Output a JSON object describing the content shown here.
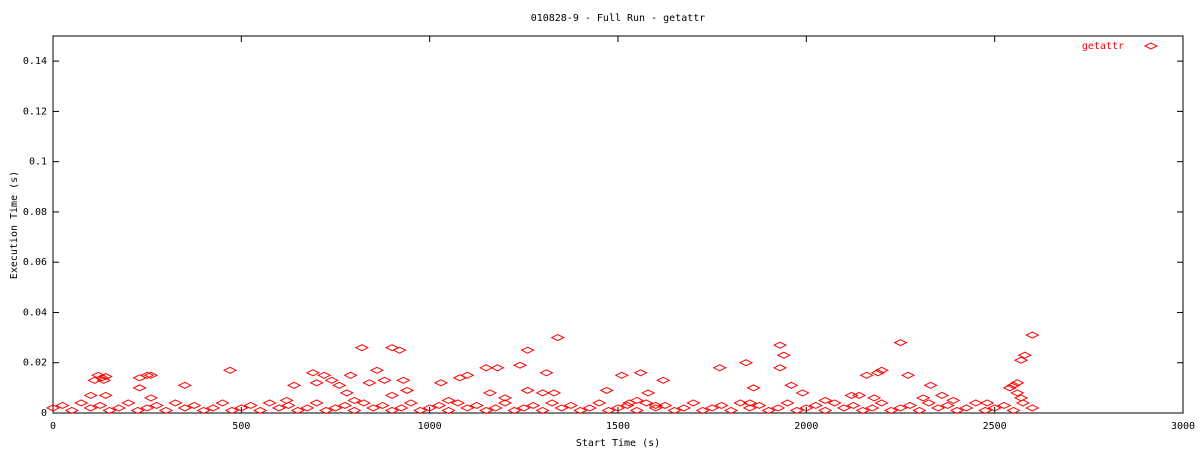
{
  "chart_data": {
    "type": "scatter",
    "title": "010828-9 - Full Run - getattr",
    "x_label": "Start Time (s)",
    "y_label": "Execution Time (s)",
    "xlim": [
      0,
      3000
    ],
    "xticks": [
      0,
      500,
      1000,
      1500,
      2000,
      2500,
      3000
    ],
    "ylim": [
      0,
      0.15
    ],
    "yticks": [
      0,
      0.02,
      0.04,
      0.06,
      0.08,
      0.1,
      0.12,
      0.14
    ],
    "legend": "top-right",
    "series": [
      {
        "name": "getattr",
        "color": "#ff0000",
        "x": [
          120,
          130,
          140,
          110,
          135,
          100,
          140,
          230,
          250,
          260,
          230,
          260,
          350,
          470,
          620,
          640,
          690,
          700,
          720,
          740,
          760,
          780,
          790,
          800,
          820,
          840,
          860,
          880,
          900,
          920,
          930,
          940,
          900,
          1030,
          1080,
          1100,
          1050,
          1150,
          1180,
          1160,
          1200,
          1240,
          1260,
          1260,
          1300,
          1310,
          1340,
          1330,
          1470,
          1510,
          1530,
          1560,
          1550,
          1580,
          1620,
          1600,
          1770,
          1840,
          1850,
          1860,
          1930,
          1940,
          1930,
          1960,
          1990,
          2050,
          2120,
          2140,
          2160,
          2200,
          2190,
          2180,
          2250,
          2270,
          2310,
          2330,
          2360,
          2390,
          2480,
          2540,
          2550,
          2560,
          2570,
          2580,
          2600,
          2560,
          2570,
          0,
          25,
          50,
          75,
          100,
          125,
          150,
          175,
          200,
          225,
          250,
          275,
          300,
          325,
          350,
          375,
          400,
          425,
          450,
          475,
          500,
          525,
          550,
          575,
          600,
          625,
          650,
          675,
          700,
          725,
          750,
          775,
          800,
          825,
          850,
          875,
          900,
          925,
          950,
          975,
          1000,
          1025,
          1050,
          1075,
          1100,
          1125,
          1150,
          1175,
          1200,
          1225,
          1250,
          1275,
          1300,
          1325,
          1350,
          1375,
          1400,
          1425,
          1450,
          1475,
          1500,
          1525,
          1550,
          1575,
          1600,
          1625,
          1650,
          1675,
          1700,
          1725,
          1750,
          1775,
          1800,
          1825,
          1850,
          1875,
          1900,
          1925,
          1950,
          1975,
          2000,
          2025,
          2050,
          2075,
          2100,
          2125,
          2150,
          2175,
          2200,
          2225,
          2250,
          2275,
          2300,
          2325,
          2350,
          2375,
          2400,
          2425,
          2450,
          2475,
          2500,
          2525,
          2550,
          2575,
          2600
        ],
        "values": [
          0.015,
          0.014,
          0.0145,
          0.013,
          0.013,
          0.007,
          0.007,
          0.014,
          0.015,
          0.015,
          0.01,
          0.006,
          0.011,
          0.017,
          0.005,
          0.011,
          0.016,
          0.012,
          0.015,
          0.013,
          0.011,
          0.008,
          0.015,
          0.005,
          0.026,
          0.012,
          0.017,
          0.013,
          0.026,
          0.025,
          0.013,
          0.009,
          0.007,
          0.012,
          0.014,
          0.015,
          0.005,
          0.018,
          0.018,
          0.008,
          0.006,
          0.019,
          0.025,
          0.009,
          0.008,
          0.016,
          0.03,
          0.008,
          0.009,
          0.015,
          0.004,
          0.016,
          0.005,
          0.008,
          0.013,
          0.003,
          0.018,
          0.02,
          0.004,
          0.01,
          0.027,
          0.023,
          0.018,
          0.011,
          0.008,
          0.005,
          0.007,
          0.007,
          0.015,
          0.017,
          0.016,
          0.006,
          0.028,
          0.015,
          0.006,
          0.011,
          0.007,
          0.005,
          0.004,
          0.01,
          0.011,
          0.012,
          0.021,
          0.023,
          0.031,
          0.008,
          0.006,
          0.002,
          0.003,
          0.001,
          0.004,
          0.002,
          0.003,
          0.001,
          0.002,
          0.004,
          0.001,
          0.002,
          0.003,
          0.001,
          0.004,
          0.002,
          0.003,
          0.001,
          0.002,
          0.004,
          0.001,
          0.002,
          0.003,
          0.001,
          0.004,
          0.002,
          0.003,
          0.001,
          0.002,
          0.004,
          0.001,
          0.002,
          0.003,
          0.001,
          0.004,
          0.002,
          0.003,
          0.001,
          0.002,
          0.004,
          0.001,
          0.002,
          0.003,
          0.001,
          0.004,
          0.002,
          0.003,
          0.001,
          0.002,
          0.004,
          0.001,
          0.002,
          0.003,
          0.001,
          0.004,
          0.002,
          0.003,
          0.001,
          0.002,
          0.004,
          0.001,
          0.002,
          0.003,
          0.001,
          0.004,
          0.002,
          0.003,
          0.001,
          0.002,
          0.004,
          0.001,
          0.002,
          0.003,
          0.001,
          0.004,
          0.002,
          0.003,
          0.001,
          0.002,
          0.004,
          0.001,
          0.002,
          0.003,
          0.001,
          0.004,
          0.002,
          0.003,
          0.001,
          0.002,
          0.004,
          0.001,
          0.002,
          0.003,
          0.001,
          0.004,
          0.002,
          0.003,
          0.001,
          0.002,
          0.004,
          0.001,
          0.002,
          0.003,
          0.001,
          0.004,
          0.002
        ]
      }
    ]
  }
}
